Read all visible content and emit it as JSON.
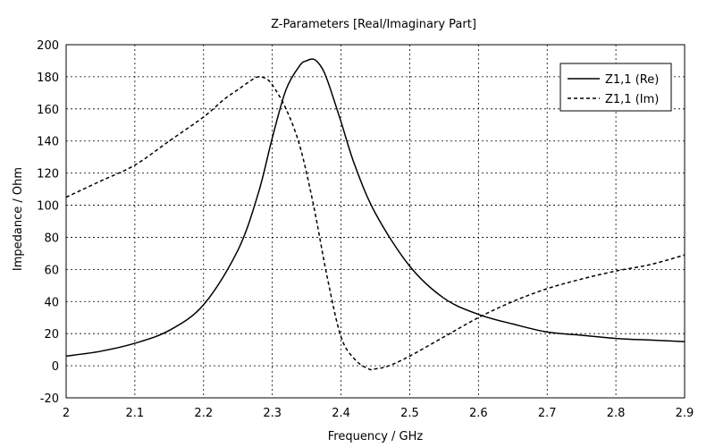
{
  "chart_data": {
    "type": "line",
    "title": "Z-Parameters [Real/Imaginary Part]",
    "xlabel": "Frequency / GHz",
    "ylabel": "Impedance / Ohm",
    "xlim": [
      2,
      2.9
    ],
    "ylim": [
      -20,
      200
    ],
    "xticks": [
      "2",
      "2.1",
      "2.2",
      "2.3",
      "2.4",
      "2.5",
      "2.6",
      "2.7",
      "2.8",
      "2.9"
    ],
    "xtick_values": [
      2,
      2.1,
      2.2,
      2.3,
      2.4,
      2.5,
      2.6,
      2.7,
      2.8,
      2.9
    ],
    "yticks": [
      "200",
      "180",
      "160",
      "140",
      "120",
      "100",
      "80",
      "60",
      "40",
      "20",
      "0",
      "-20"
    ],
    "ytick_values": [
      200,
      180,
      160,
      140,
      120,
      100,
      80,
      60,
      40,
      20,
      0,
      -20
    ],
    "grid": true,
    "legend_position": "top-right",
    "series": [
      {
        "name": "Z1,1 (Re)",
        "line_style": "solid",
        "color": "#000000",
        "x": [
          2.0,
          2.05,
          2.1,
          2.15,
          2.2,
          2.25,
          2.28,
          2.3,
          2.32,
          2.34,
          2.35,
          2.36,
          2.37,
          2.38,
          2.4,
          2.42,
          2.45,
          2.5,
          2.55,
          2.6,
          2.65,
          2.7,
          2.75,
          2.8,
          2.85,
          2.9
        ],
        "y": [
          6,
          9,
          14,
          22,
          38,
          72,
          108,
          142,
          172,
          187,
          190,
          191,
          187,
          178,
          152,
          125,
          95,
          62,
          42,
          32,
          26,
          21,
          19,
          17,
          16,
          15
        ]
      },
      {
        "name": "Z1,1 (Im)",
        "line_style": "dashed",
        "color": "#000000",
        "x": [
          2.0,
          2.05,
          2.1,
          2.15,
          2.2,
          2.23,
          2.25,
          2.27,
          2.28,
          2.29,
          2.3,
          2.32,
          2.34,
          2.36,
          2.38,
          2.4,
          2.42,
          2.44,
          2.45,
          2.47,
          2.5,
          2.55,
          2.6,
          2.65,
          2.7,
          2.75,
          2.8,
          2.85,
          2.9
        ],
        "y": [
          105,
          115,
          125,
          140,
          155,
          166,
          172,
          178,
          180,
          179,
          175,
          160,
          137,
          100,
          55,
          18,
          4,
          -2,
          -2,
          0,
          6,
          18,
          30,
          40,
          48,
          54,
          59,
          63,
          69
        ]
      }
    ]
  }
}
